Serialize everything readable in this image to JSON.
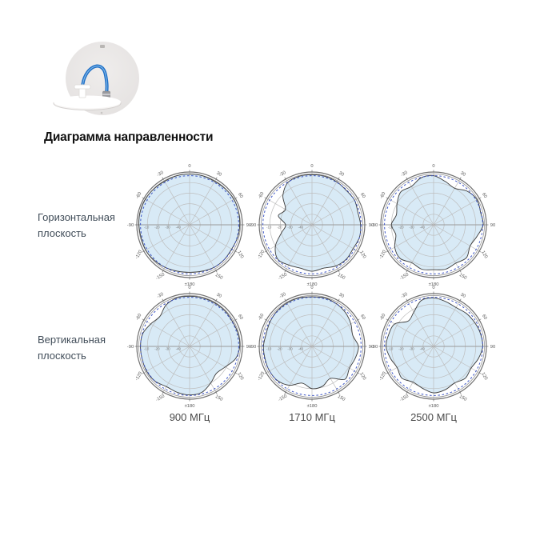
{
  "page": {
    "background": "#ffffff"
  },
  "header": {
    "title": "Диаграмма направленности",
    "product_image": "ceiling-antenna-with-blue-cable"
  },
  "rows": [
    {
      "label_line1": "Горизонтальная",
      "label_line2": "плоскость"
    },
    {
      "label_line1": "Вертикальная",
      "label_line2": "плоскость"
    }
  ],
  "columns": {
    "c1": "900 МГц",
    "c2": "1710 МГц",
    "c3": "2500 МГц"
  },
  "colors": {
    "fill": "#d8eaf6",
    "outline": "#3a3a3a",
    "dashed_reference": "#3f57c5",
    "grid": "#bdbdbd",
    "axis": "#9a9a9a",
    "rim": "#6f6f6f",
    "tick_text": "#5a5a5a",
    "radial_text": "#777777",
    "photo_circle": "#eae8e7",
    "cable_blue": "#2e7bd0"
  },
  "chart_data": {
    "type": "polar",
    "rlim": [
      -50,
      0
    ],
    "radial_ticks": [
      -10,
      -20,
      -30,
      -40
    ],
    "angle_ticks_deg": [
      0,
      30,
      60,
      90,
      120,
      150,
      180,
      -150,
      -120,
      -90,
      -60,
      -30
    ],
    "angle_tick_labels": [
      "0",
      "30",
      "60",
      "90",
      "120",
      "150",
      "±180",
      "-150",
      "-120",
      "-90",
      "-60",
      "-30"
    ],
    "angles_deg": [
      -180,
      -165,
      -150,
      -135,
      -120,
      -105,
      -90,
      -75,
      -60,
      -45,
      -30,
      -15,
      0,
      15,
      30,
      45,
      60,
      75,
      90,
      105,
      120,
      135,
      150,
      165
    ],
    "charts": [
      {
        "plane": "Горизонтальная плоскость",
        "frequency": "900 МГц",
        "reference_db": -3.5,
        "gain_db": [
          -5,
          -4.5,
          -3.5,
          -2.5,
          -2,
          -2.5,
          -2,
          -1.5,
          -1.5,
          -2,
          -2.5,
          -2,
          -2,
          -2,
          -2.5,
          -2,
          -1.5,
          -2,
          -2.5,
          -3,
          -4,
          -3.5,
          -3.5,
          -4.5
        ]
      },
      {
        "plane": "Горизонтальная плоскость",
        "frequency": "1710 МГц",
        "reference_db": -3.5,
        "gain_db": [
          -6,
          -7.5,
          -6,
          -4,
          -10,
          -20,
          -25,
          -17,
          -21,
          -11,
          -4,
          -2.5,
          -2.5,
          -2.5,
          -3,
          -4,
          -3.5,
          -5,
          -4,
          -3.5,
          -5,
          -4,
          -5,
          -7.5
        ]
      },
      {
        "plane": "Горизонтальная плоскость",
        "frequency": "2500 МГц",
        "reference_db": -3.5,
        "gain_db": [
          -7.5,
          -6.5,
          -8.5,
          -5,
          -7.5,
          -13,
          -10,
          -13.5,
          -10,
          -6,
          -8,
          -4,
          -3.5,
          -7.5,
          -10,
          -5,
          -2.5,
          -4,
          -3,
          -7.5,
          -10,
          -6,
          -8,
          -6.5
        ]
      },
      {
        "plane": "Вертикальная плоскость",
        "frequency": "900 МГц",
        "reference_db": -3.5,
        "gain_db": [
          -4,
          -5,
          -6,
          -3.5,
          -3,
          -3.5,
          -3.5,
          -4,
          -7.5,
          -10,
          -5,
          -2.5,
          -2.5,
          -2.5,
          -2.5,
          -2.5,
          -3,
          -2.5,
          -2.5,
          -5,
          -11,
          -14,
          -10,
          -5
        ]
      },
      {
        "plane": "Вертикальная плоскость",
        "frequency": "1710 МГц",
        "reference_db": -3.5,
        "gain_db": [
          -10,
          -14,
          -7.5,
          -4,
          -3.5,
          -4,
          -4,
          -5,
          -4,
          -3,
          -2.5,
          -2.5,
          -3,
          -2.5,
          -3.5,
          -5,
          -7.5,
          -10,
          -6,
          -7.5,
          -9,
          -6,
          -15,
          -11
        ]
      },
      {
        "plane": "Вертикальная плоскость",
        "frequency": "2500 МГц",
        "reference_db": -3.5,
        "gain_db": [
          -6,
          -9,
          -11,
          -7.5,
          -10,
          -7.5,
          -5,
          -6,
          -7.5,
          -16,
          -12.5,
          -5,
          -4,
          -6,
          -7.5,
          -6,
          -5,
          -4,
          -3.5,
          -6,
          -9,
          -7.5,
          -10,
          -7.5
        ]
      }
    ]
  }
}
